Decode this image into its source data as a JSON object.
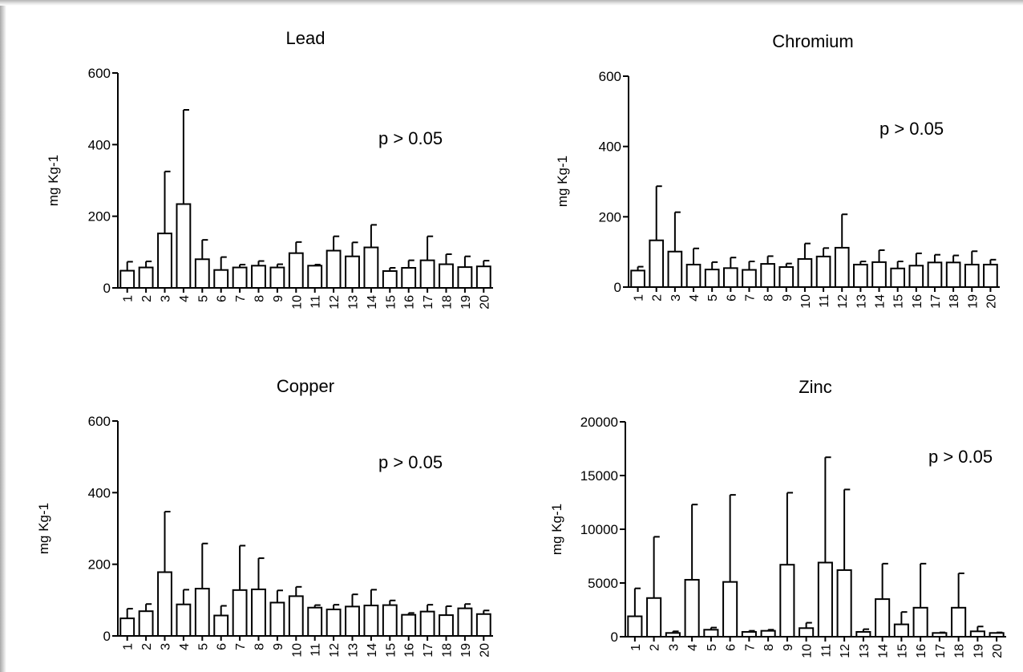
{
  "chart_data": [
    {
      "type": "bar",
      "title": "Lead",
      "ylabel": "mg Kg-1",
      "annotation": "p > 0.05",
      "ylim": [
        0,
        600
      ],
      "yticks": [
        0,
        200,
        400,
        600
      ],
      "categories": [
        "1",
        "2",
        "3",
        "4",
        "5",
        "6",
        "7",
        "8",
        "9",
        "10",
        "11",
        "12",
        "13",
        "14",
        "15",
        "16",
        "17",
        "18",
        "19",
        "20"
      ],
      "values": [
        48,
        57,
        152,
        234,
        80,
        50,
        57,
        62,
        57,
        97,
        62,
        104,
        88,
        113,
        47,
        56,
        77,
        66,
        58,
        60
      ],
      "errors": [
        25,
        17,
        173,
        263,
        54,
        36,
        8,
        13,
        9,
        31,
        3,
        40,
        39,
        63,
        9,
        21,
        67,
        28,
        30,
        16
      ]
    },
    {
      "type": "bar",
      "title": "Chromium",
      "ylabel": "mg Kg-1",
      "annotation": "p > 0.05",
      "ylim": [
        0,
        600
      ],
      "yticks": [
        0,
        200,
        400,
        600
      ],
      "categories": [
        "1",
        "2",
        "3",
        "4",
        "5",
        "6",
        "7",
        "8",
        "9",
        "10",
        "11",
        "12",
        "13",
        "14",
        "15",
        "16",
        "17",
        "18",
        "19",
        "20"
      ],
      "values": [
        47,
        133,
        101,
        64,
        50,
        54,
        49,
        66,
        57,
        80,
        87,
        112,
        64,
        71,
        53,
        61,
        70,
        70,
        64,
        64
      ],
      "errors": [
        11,
        154,
        112,
        46,
        21,
        30,
        24,
        22,
        10,
        44,
        24,
        95,
        9,
        34,
        20,
        35,
        22,
        20,
        38,
        14
      ]
    },
    {
      "type": "bar",
      "title": "Copper",
      "ylabel": "mg Kg-1",
      "annotation": "p > 0.05",
      "ylim": [
        0,
        600
      ],
      "yticks": [
        0,
        200,
        400,
        600
      ],
      "categories": [
        "1",
        "2",
        "3",
        "4",
        "5",
        "6",
        "7",
        "8",
        "9",
        "10",
        "11",
        "12",
        "13",
        "14",
        "15",
        "16",
        "17",
        "18",
        "19",
        "20"
      ],
      "values": [
        49,
        69,
        178,
        88,
        132,
        57,
        128,
        130,
        93,
        111,
        79,
        74,
        82,
        85,
        86,
        59,
        68,
        58,
        77,
        61
      ],
      "errors": [
        27,
        20,
        169,
        41,
        126,
        27,
        124,
        87,
        34,
        26,
        7,
        13,
        34,
        44,
        13,
        5,
        19,
        25,
        12,
        10
      ]
    },
    {
      "type": "bar",
      "title": "Zinc",
      "ylabel": "mg Kg-1",
      "annotation": "p > 0.05",
      "ylim": [
        0,
        20000
      ],
      "yticks": [
        0,
        5000,
        10000,
        15000,
        20000
      ],
      "categories": [
        "1",
        "2",
        "3",
        "4",
        "5",
        "6",
        "7",
        "8",
        "9",
        "10",
        "11",
        "12",
        "13",
        "14",
        "15",
        "16",
        "17",
        "18",
        "19",
        "20"
      ],
      "values": [
        1900,
        3600,
        350,
        5300,
        650,
        5100,
        450,
        550,
        6700,
        800,
        6900,
        6200,
        450,
        3500,
        1150,
        2700,
        350,
        2700,
        500,
        350
      ],
      "errors": [
        2600,
        5700,
        150,
        7000,
        200,
        8100,
        100,
        100,
        6700,
        500,
        9800,
        7500,
        250,
        3300,
        1150,
        4100,
        50,
        3200,
        450,
        50
      ]
    }
  ]
}
